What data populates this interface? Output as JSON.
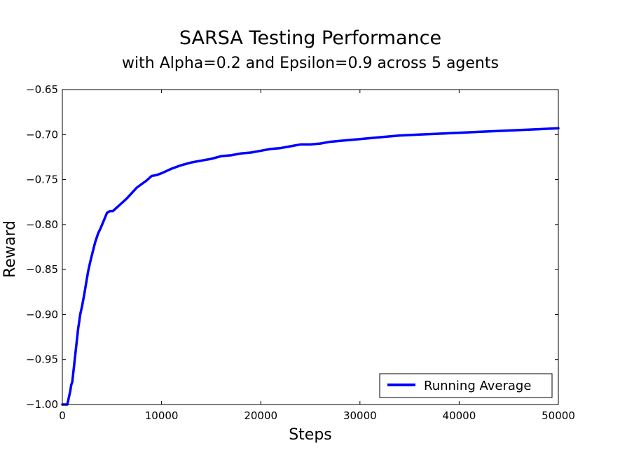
{
  "chart_data": {
    "type": "line",
    "title": "SARSA Testing Performance",
    "subtitle": "with Alpha=0.2 and Epsilon=0.9 across 5 agents",
    "xlabel": "Steps",
    "ylabel": "Reward",
    "xlim": [
      0,
      50000
    ],
    "ylim": [
      -1.0,
      -0.65
    ],
    "xticks": [
      0,
      10000,
      20000,
      30000,
      40000,
      50000
    ],
    "xtick_labels": [
      "0",
      "10000",
      "20000",
      "30000",
      "40000",
      "50000"
    ],
    "yticks": [
      -1.0,
      -0.95,
      -0.9,
      -0.85,
      -0.8,
      -0.75,
      -0.7,
      -0.65
    ],
    "ytick_labels": [
      "−1.00",
      "−0.95",
      "−0.90",
      "−0.85",
      "−0.80",
      "−0.75",
      "−0.70",
      "−0.65"
    ],
    "grid": false,
    "legend_position": "lower-right",
    "series": [
      {
        "name": "Running Average",
        "color": "#0000ff",
        "x": [
          0,
          300,
          500,
          700,
          800,
          900,
          1000,
          1100,
          1200,
          1300,
          1400,
          1500,
          1600,
          1700,
          1800,
          1900,
          2000,
          2200,
          2400,
          2600,
          2800,
          3000,
          3300,
          3600,
          3900,
          4200,
          4500,
          4800,
          5100,
          5500,
          6000,
          6500,
          7000,
          7500,
          8000,
          8500,
          9000,
          9500,
          10000,
          11000,
          12000,
          13000,
          14000,
          15000,
          16000,
          17000,
          18000,
          19000,
          20000,
          21000,
          22000,
          23000,
          24000,
          25000,
          26000,
          27000,
          28000,
          29000,
          30000,
          32000,
          34000,
          36000,
          38000,
          40000,
          42000,
          44000,
          46000,
          48000,
          50000
        ],
        "y": [
          -1.0,
          -1.0,
          -1.0,
          -0.99,
          -0.985,
          -0.978,
          -0.975,
          -0.965,
          -0.955,
          -0.945,
          -0.935,
          -0.925,
          -0.915,
          -0.908,
          -0.9,
          -0.895,
          -0.89,
          -0.878,
          -0.865,
          -0.852,
          -0.842,
          -0.833,
          -0.82,
          -0.81,
          -0.803,
          -0.795,
          -0.787,
          -0.785,
          -0.785,
          -0.781,
          -0.776,
          -0.771,
          -0.765,
          -0.759,
          -0.755,
          -0.751,
          -0.746,
          -0.745,
          -0.743,
          -0.738,
          -0.734,
          -0.731,
          -0.729,
          -0.727,
          -0.724,
          -0.723,
          -0.721,
          -0.72,
          -0.718,
          -0.716,
          -0.715,
          -0.713,
          -0.711,
          -0.711,
          -0.71,
          -0.708,
          -0.707,
          -0.706,
          -0.705,
          -0.703,
          -0.701,
          -0.7,
          -0.699,
          -0.698,
          -0.697,
          -0.696,
          -0.695,
          -0.694,
          -0.693
        ]
      }
    ]
  }
}
